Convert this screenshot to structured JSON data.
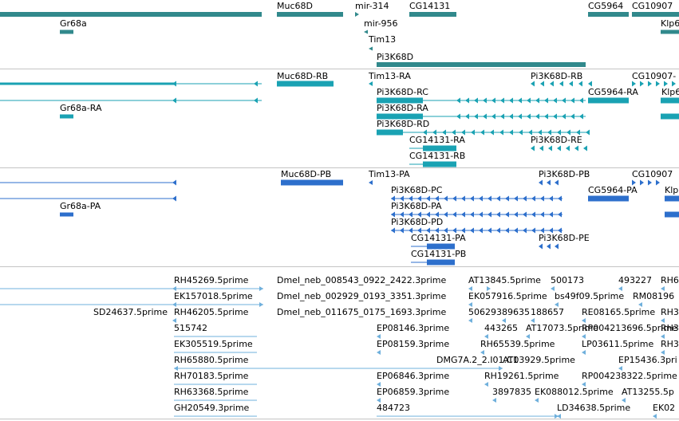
{
  "colors": {
    "gene": "#31898c",
    "transcript_cds": "#1aa2b3",
    "transcript_utr": "#1aa2b3",
    "protein": "#2d6fcc",
    "est": "#6fb0dc",
    "separator": "#c4c4c4"
  },
  "tracks": [
    {
      "name": "gene-track",
      "label_items": [
        {
          "text": "Muc68D"
        },
        {
          "text": "mir-314"
        },
        {
          "text": "CG14131"
        },
        {
          "text": "CG5964"
        },
        {
          "text": "CG10907"
        },
        {
          "text": "Gr68a"
        },
        {
          "text": "mir-956"
        },
        {
          "text": "Klp6"
        },
        {
          "text": "Tim13"
        },
        {
          "text": "Pi3K68D"
        }
      ]
    },
    {
      "name": "transcript-track",
      "label_items": [
        {
          "text": "Muc68D-RB"
        },
        {
          "text": "Tim13-RA"
        },
        {
          "text": "Pi3K68D-RB"
        },
        {
          "text": "CG10907-"
        },
        {
          "text": "Pi3K68D-RC"
        },
        {
          "text": "CG5964-RA"
        },
        {
          "text": "Klp6"
        },
        {
          "text": "Gr68a-RA"
        },
        {
          "text": "Pi3K68D-RA"
        },
        {
          "text": "Pi3K68D-RD"
        },
        {
          "text": "CG14131-RA"
        },
        {
          "text": "Pi3K68D-RE"
        },
        {
          "text": "CG14131-RB"
        }
      ]
    },
    {
      "name": "protein-track",
      "label_items": [
        {
          "text": "Muc68D-PB"
        },
        {
          "text": "Tim13-PA"
        },
        {
          "text": "Pi3K68D-PB"
        },
        {
          "text": "CG10907"
        },
        {
          "text": "Pi3K68D-PC"
        },
        {
          "text": "CG5964-PA"
        },
        {
          "text": "Klp"
        },
        {
          "text": "Gr68a-PA"
        },
        {
          "text": "Pi3K68D-PA"
        },
        {
          "text": "Pi3K68D-PD"
        },
        {
          "text": "CG14131-PA"
        },
        {
          "text": "Pi3K68D-PE"
        },
        {
          "text": "CG14131-PB"
        }
      ]
    },
    {
      "name": "est-track",
      "label_items": [
        {
          "text": "RH45269.5prime"
        },
        {
          "text": "Dmel_neb_008543_0922_2422.3prime"
        },
        {
          "text": "AT13845.5prime"
        },
        {
          "text": "500173"
        },
        {
          "text": "493227"
        },
        {
          "text": "RH6"
        },
        {
          "text": "EK157018.5prime"
        },
        {
          "text": "Dmel_neb_002929_0193_3351.3prime"
        },
        {
          "text": "EK057916.5prime"
        },
        {
          "text": "bs49f09.5prime"
        },
        {
          "text": "RM08196"
        },
        {
          "text": "SD24637.5prime"
        },
        {
          "text": "RH46205.5prime"
        },
        {
          "text": "Dmel_neb_011675_0175_1693.3prime"
        },
        {
          "text": "506293"
        },
        {
          "text": "89635"
        },
        {
          "text": "188657"
        },
        {
          "text": "RE08165.5prime"
        },
        {
          "text": "RH3"
        },
        {
          "text": "515742"
        },
        {
          "text": "EP08146.3prime"
        },
        {
          "text": "443265"
        },
        {
          "text": "AT17073.5prime"
        },
        {
          "text": "RP004213696.5prime"
        },
        {
          "text": "RH3"
        },
        {
          "text": "EK305519.5prime"
        },
        {
          "text": "EP08159.3prime"
        },
        {
          "text": "RH65539.5prime"
        },
        {
          "text": "LP03611.5prime"
        },
        {
          "text": "RH3"
        },
        {
          "text": "RH65880.5prime"
        },
        {
          "text": "DMG7A.2_2.I01.C1"
        },
        {
          "text": "AT03929.5prime"
        },
        {
          "text": "EP15436.3pri"
        },
        {
          "text": "RH70183.5prime"
        },
        {
          "text": "EP06846.3prime"
        },
        {
          "text": "RH19261.5prime"
        },
        {
          "text": "RP004238322.5prime"
        },
        {
          "text": "RH63368.5prime"
        },
        {
          "text": "EP06859.3prime"
        },
        {
          "text": "3897835"
        },
        {
          "text": "EK088012.5prime"
        },
        {
          "text": "AT13255.5p"
        },
        {
          "text": "GH20549.3prime"
        },
        {
          "text": "484723"
        },
        {
          "text": "LD34638.5prime"
        },
        {
          "text": "EK02"
        }
      ]
    }
  ]
}
